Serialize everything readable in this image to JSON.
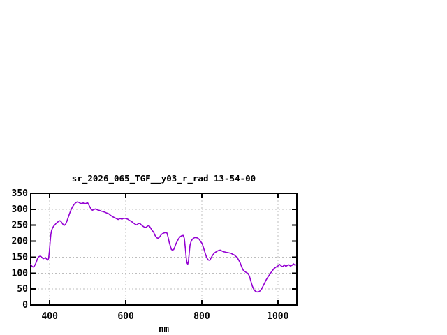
{
  "window": {
    "background": "#ffffff"
  },
  "chart_data": {
    "type": "line",
    "title": "sr_2026_065_TGF__y03_r_rad 13-54-00",
    "xlabel": "nm",
    "ylabel": "",
    "xlim": [
      350,
      1050
    ],
    "ylim": [
      0,
      350
    ],
    "x_ticks": [
      400,
      600,
      800,
      1000
    ],
    "y_ticks": [
      0,
      50,
      100,
      150,
      200,
      250,
      300,
      350
    ],
    "grid": true,
    "legend_position": "none",
    "colors": {
      "curve": "#9400d3",
      "grid": "#bdbdbd",
      "axis": "#000000",
      "text": "#000000",
      "background": "#ffffff"
    },
    "series": [
      {
        "x": [
          350,
          353,
          356,
          359,
          362,
          365,
          368,
          371,
          374,
          377,
          380,
          383,
          386,
          389,
          392,
          395,
          397,
          399,
          401,
          403,
          405,
          408,
          411,
          414,
          417,
          420,
          424,
          427,
          430,
          433,
          436,
          439,
          442,
          445,
          448,
          452,
          456,
          460,
          464,
          468,
          472,
          476,
          480,
          484,
          488,
          492,
          496,
          500,
          504,
          508,
          512,
          516,
          520,
          524,
          528,
          532,
          536,
          540,
          545,
          550,
          555,
          560,
          565,
          570,
          575,
          580,
          585,
          590,
          595,
          600,
          605,
          610,
          615,
          620,
          625,
          629,
          633,
          637,
          641,
          645,
          649,
          653,
          657,
          661,
          665,
          669,
          673,
          677,
          681,
          685,
          689,
          693,
          697,
          701,
          705,
          708,
          711,
          714,
          717,
          720,
          723,
          726,
          729,
          732,
          735,
          739,
          743,
          747,
          751,
          754,
          757,
          759,
          761,
          763,
          765,
          767,
          769,
          772,
          775,
          778,
          781,
          785,
          789,
          793,
          797,
          801,
          805,
          809,
          813,
          817,
          821,
          825,
          829,
          833,
          837,
          841,
          845,
          849,
          853,
          857,
          861,
          865,
          869,
          873,
          877,
          881,
          885,
          889,
          893,
          897,
          901,
          905,
          909,
          913,
          917,
          921,
          925,
          929,
          933,
          937,
          941,
          945,
          949,
          953,
          957,
          961,
          965,
          969,
          973,
          977,
          981,
          985,
          989,
          993,
          997,
          1001,
          1005,
          1009,
          1013,
          1017,
          1021,
          1025,
          1029,
          1033,
          1037,
          1041,
          1045,
          1048
        ],
        "y": [
          127,
          122,
          119,
          121,
          127,
          136,
          146,
          151,
          153,
          152,
          148,
          145,
          147,
          148,
          144,
          141,
          146,
          168,
          198,
          221,
          234,
          243,
          248,
          252,
          256,
          259,
          263,
          264,
          261,
          256,
          251,
          250,
          254,
          262,
          272,
          286,
          298,
          308,
          315,
          320,
          323,
          322,
          319,
          318,
          320,
          317,
          319,
          320,
          311,
          302,
          297,
          299,
          301,
          299,
          297,
          296,
          294,
          293,
          291,
          288,
          286,
          281,
          277,
          274,
          271,
          268,
          271,
          269,
          272,
          271,
          269,
          265,
          262,
          257,
          253,
          251,
          255,
          256,
          251,
          247,
          244,
          243,
          247,
          249,
          242,
          234,
          229,
          218,
          211,
          209,
          213,
          220,
          224,
          226,
          227,
          226,
          214,
          198,
          185,
          174,
          172,
          174,
          182,
          192,
          199,
          208,
          214,
          217,
          218,
          209,
          175,
          148,
          132,
          128,
          138,
          165,
          188,
          200,
          206,
          209,
          211,
          211,
          210,
          206,
          199,
          192,
          178,
          162,
          148,
          141,
          140,
          149,
          157,
          163,
          166,
          169,
          171,
          172,
          169,
          167,
          166,
          165,
          164,
          163,
          162,
          159,
          157,
          153,
          149,
          141,
          132,
          119,
          109,
          105,
          102,
          99,
          91,
          75,
          59,
          48,
          43,
          41,
          41,
          44,
          50,
          59,
          68,
          78,
          86,
          93,
          100,
          106,
          113,
          117,
          120,
          123,
          127,
          122,
          120,
          126,
          121,
          124,
          126,
          122,
          124,
          129,
          125,
          126
        ]
      }
    ]
  }
}
